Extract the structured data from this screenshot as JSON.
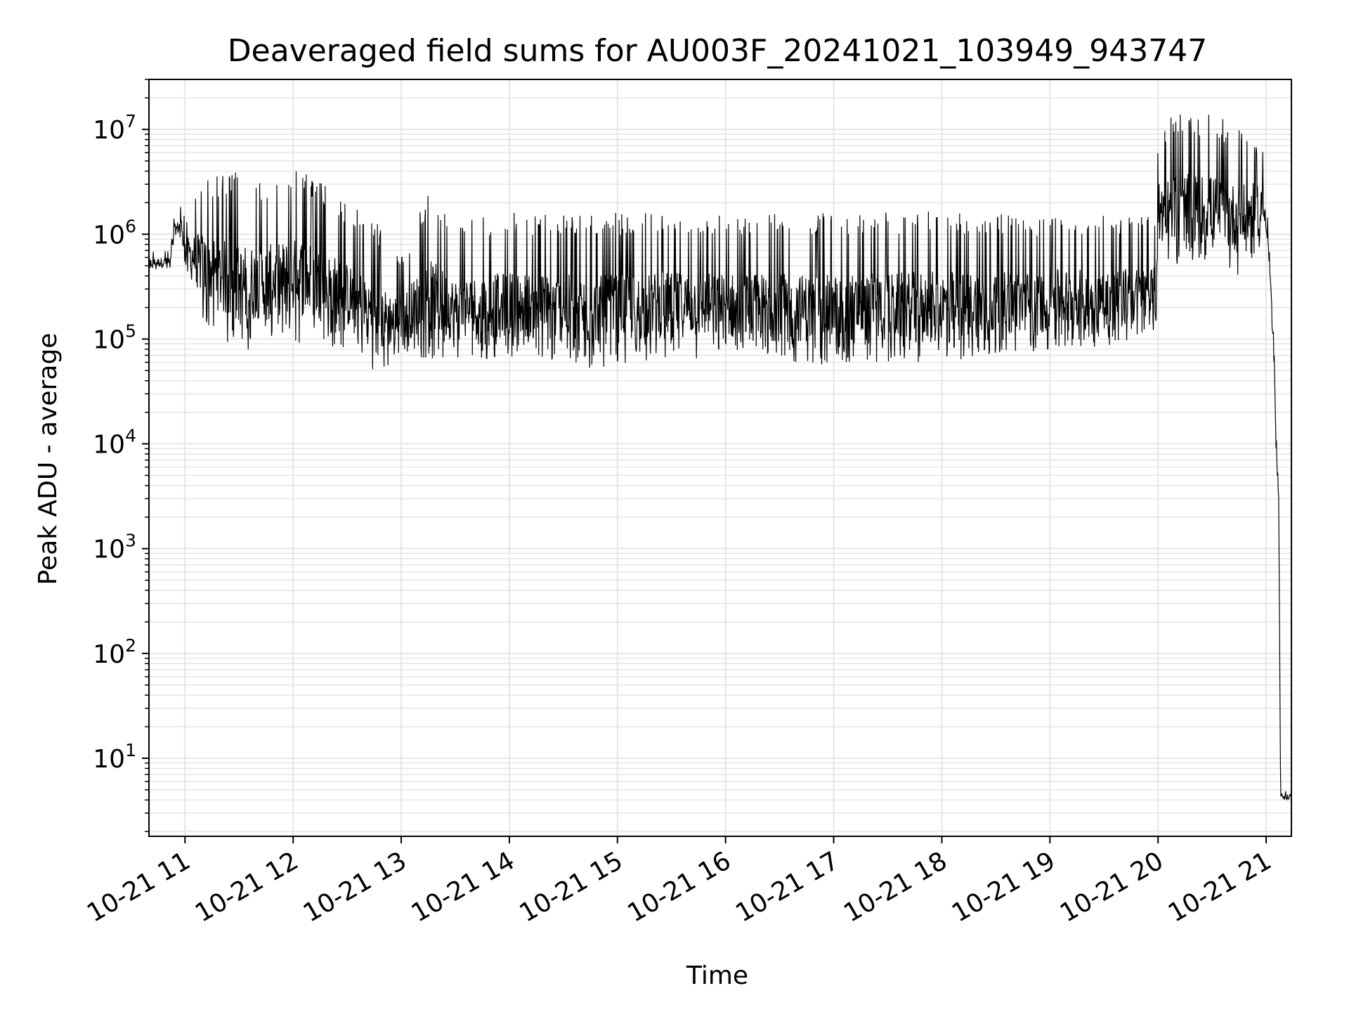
{
  "chart_data": {
    "type": "line",
    "title": "Deaveraged field sums for AU003F_20241021_103949_943747",
    "xlabel": "Time",
    "ylabel": "Peak ADU - average",
    "y_scale": "log",
    "ylim": [
      1.8,
      30000000
    ],
    "xlim": [
      "2024-10-21 10:40",
      "2024-10-21 21:14"
    ],
    "grid": true,
    "line_color": "#000000",
    "grid_color": "#e6e6e6",
    "x_ticks": [
      {
        "t": "2024-10-21 11:00",
        "label": "10-21 11"
      },
      {
        "t": "2024-10-21 12:00",
        "label": "10-21 12"
      },
      {
        "t": "2024-10-21 13:00",
        "label": "10-21 13"
      },
      {
        "t": "2024-10-21 14:00",
        "label": "10-21 14"
      },
      {
        "t": "2024-10-21 15:00",
        "label": "10-21 15"
      },
      {
        "t": "2024-10-21 16:00",
        "label": "10-21 16"
      },
      {
        "t": "2024-10-21 17:00",
        "label": "10-21 17"
      },
      {
        "t": "2024-10-21 18:00",
        "label": "10-21 18"
      },
      {
        "t": "2024-10-21 19:00",
        "label": "10-21 19"
      },
      {
        "t": "2024-10-21 20:00",
        "label": "10-21 20"
      },
      {
        "t": "2024-10-21 21:00",
        "label": "10-21 21"
      }
    ],
    "y_ticks": [
      {
        "value": 10,
        "base": "10",
        "exp": "1"
      },
      {
        "value": 100,
        "base": "10",
        "exp": "2"
      },
      {
        "value": 1000,
        "base": "10",
        "exp": "3"
      },
      {
        "value": 10000,
        "base": "10",
        "exp": "4"
      },
      {
        "value": 100000,
        "base": "10",
        "exp": "5"
      },
      {
        "value": 1000000,
        "base": "10",
        "exp": "6"
      },
      {
        "value": 10000000,
        "base": "10",
        "exp": "7"
      }
    ],
    "series": [
      {
        "note_format": "each point: [time, low, high] envelope of fluctuating signal",
        "points": [
          [
            "2024-10-21 10:40",
            450000,
            700000
          ],
          [
            "2024-10-21 10:52",
            460000,
            720000
          ],
          [
            "2024-10-21 10:54",
            900000,
            1500000
          ],
          [
            "2024-10-21 10:58",
            900000,
            2000000
          ],
          [
            "2024-10-21 11:00",
            500000,
            1400000
          ],
          [
            "2024-10-21 11:10",
            150000,
            3800000
          ],
          [
            "2024-10-21 11:30",
            70000,
            4000000
          ],
          [
            "2024-10-21 11:45",
            100000,
            3100000
          ],
          [
            "2024-10-21 12:05",
            90000,
            4600000
          ],
          [
            "2024-10-21 12:30",
            80000,
            1900000
          ],
          [
            "2024-10-21 12:45",
            50000,
            1500000
          ],
          [
            "2024-10-21 12:48",
            45000,
            1200000
          ],
          [
            "2024-10-21 13:00",
            70000,
            600000
          ],
          [
            "2024-10-21 13:15",
            65000,
            2600000
          ],
          [
            "2024-10-21 13:30",
            60000,
            1300000
          ],
          [
            "2024-10-21 14:00",
            65000,
            1600000
          ],
          [
            "2024-10-21 14:45",
            50000,
            1600000
          ],
          [
            "2024-10-21 15:30",
            65000,
            1600000
          ],
          [
            "2024-10-21 16:00",
            60000,
            1600000
          ],
          [
            "2024-10-21 17:00",
            55000,
            1600000
          ],
          [
            "2024-10-21 18:00",
            60000,
            1700000
          ],
          [
            "2024-10-21 18:45",
            70000,
            1500000
          ],
          [
            "2024-10-21 19:00",
            80000,
            1500000
          ],
          [
            "2024-10-21 19:59",
            90000,
            1500000
          ],
          [
            "2024-10-21 20:00",
            700000,
            9000000
          ],
          [
            "2024-10-21 20:10",
            500000,
            15000000
          ],
          [
            "2024-10-21 20:30",
            500000,
            14000000
          ],
          [
            "2024-10-21 20:45",
            400000,
            11000000
          ],
          [
            "2024-10-21 20:58",
            800000,
            8000000
          ],
          [
            "2024-10-21 21:00",
            900000,
            3000000
          ],
          [
            "2024-10-21 21:02",
            400000,
            600000
          ],
          [
            "2024-10-21 21:04",
            60000,
            200000
          ],
          [
            "2024-10-21 21:05",
            15000,
            25000
          ],
          [
            "2024-10-21 21:06",
            5000,
            8000
          ],
          [
            "2024-10-21 21:07",
            2500,
            3500
          ],
          [
            "2024-10-21 21:08",
            4,
            5
          ],
          [
            "2024-10-21 21:14",
            4,
            5
          ]
        ]
      }
    ]
  }
}
